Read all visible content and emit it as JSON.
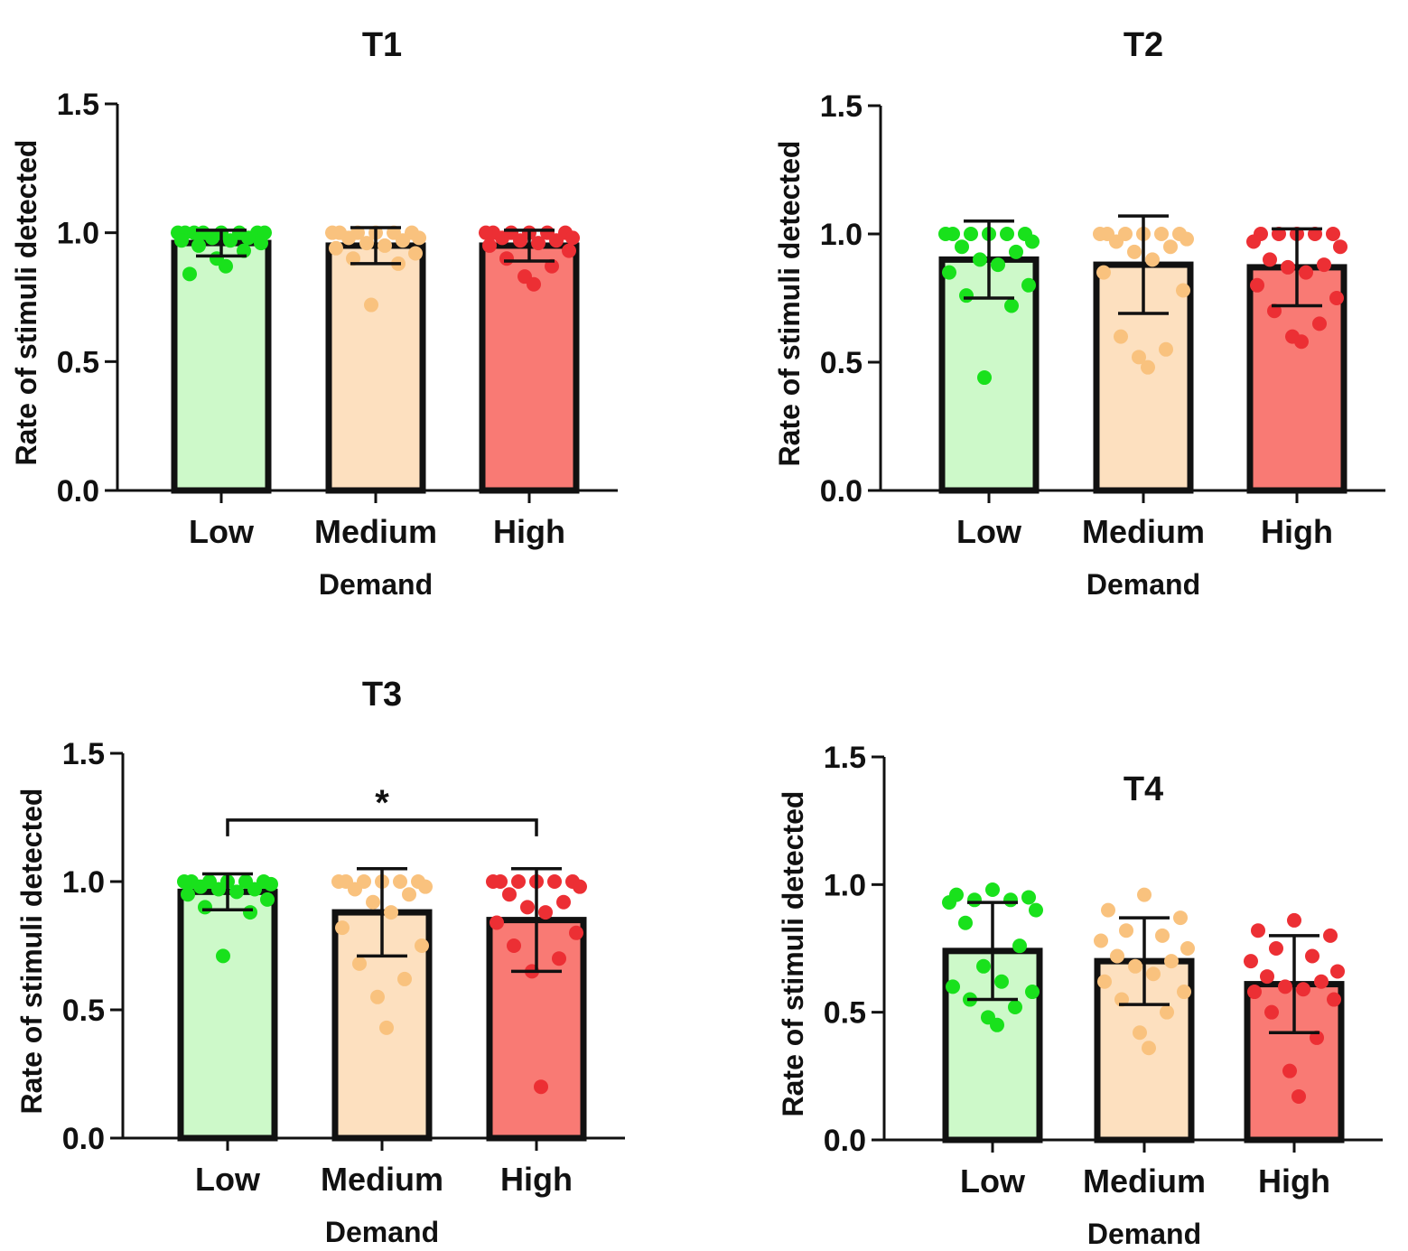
{
  "colors": {
    "low_fill": "#cdf9c9",
    "low_dot": "#19e11c",
    "medium_fill": "#fde0bf",
    "medium_dot": "#f9c27e",
    "high_fill": "#f97a74",
    "high_dot": "#ec2f34",
    "axis": "#111111"
  },
  "chart_data": [
    {
      "type": "bar",
      "title": "T1",
      "title_position": "top",
      "xlabel": "Demand",
      "ylabel": "Rate of stimuli detected",
      "categories": [
        "Low",
        "Medium",
        "High"
      ],
      "ylim": [
        0,
        1.5
      ],
      "yticks": [
        "0.0",
        "0.5",
        "1.0",
        "1.5"
      ],
      "means": [
        0.96,
        0.95,
        0.95
      ],
      "sd": [
        0.05,
        0.07,
        0.06
      ],
      "points": [
        [
          1,
          1,
          1,
          1,
          1,
          1,
          1,
          1,
          0.98,
          0.98,
          0.97,
          0.97,
          0.96,
          0.95,
          0.93,
          0.9,
          0.87,
          0.84
        ],
        [
          1,
          1,
          1,
          1,
          1,
          1,
          0.98,
          0.98,
          0.97,
          0.96,
          0.95,
          0.94,
          0.92,
          0.9,
          0.88,
          0.72
        ],
        [
          1,
          1,
          1,
          1,
          1,
          1,
          0.98,
          0.98,
          0.97,
          0.97,
          0.96,
          0.95,
          0.93,
          0.9,
          0.87,
          0.83,
          0.8
        ]
      ],
      "significance": null
    },
    {
      "type": "bar",
      "title": "T2",
      "title_position": "top",
      "xlabel": "Demand",
      "ylabel": "Rate of stimuli detected",
      "categories": [
        "Low",
        "Medium",
        "High"
      ],
      "ylim": [
        0,
        1.5
      ],
      "yticks": [
        "0.0",
        "0.5",
        "1.0",
        "1.5"
      ],
      "means": [
        0.9,
        0.88,
        0.87
      ],
      "sd": [
        0.15,
        0.19,
        0.15
      ],
      "points": [
        [
          1,
          1,
          1,
          1,
          1,
          1,
          0.97,
          0.95,
          0.93,
          0.9,
          0.88,
          0.85,
          0.8,
          0.76,
          0.72,
          0.44
        ],
        [
          1,
          1,
          1,
          1,
          1,
          1,
          0.98,
          0.97,
          0.95,
          0.93,
          0.9,
          0.85,
          0.78,
          0.6,
          0.55,
          0.52,
          0.48
        ],
        [
          1,
          1,
          1,
          1,
          1,
          0.97,
          0.95,
          0.9,
          0.88,
          0.87,
          0.85,
          0.8,
          0.75,
          0.7,
          0.65,
          0.6,
          0.58
        ]
      ],
      "significance": null
    },
    {
      "type": "bar",
      "title": "T3",
      "title_position": "top",
      "xlabel": "Demand",
      "ylabel": "Rate of stimuli detected",
      "categories": [
        "Low",
        "Medium",
        "High"
      ],
      "ylim": [
        0,
        1.5
      ],
      "yticks": [
        "0.0",
        "0.5",
        "1.0",
        "1.5"
      ],
      "means": [
        0.96,
        0.88,
        0.85
      ],
      "sd": [
        0.07,
        0.17,
        0.2
      ],
      "points": [
        [
          1,
          1,
          1,
          1,
          1,
          1,
          0.99,
          0.98,
          0.97,
          0.97,
          0.96,
          0.95,
          0.93,
          0.9,
          0.88,
          0.71
        ],
        [
          1,
          1,
          1,
          1,
          1,
          1,
          0.98,
          0.97,
          0.95,
          0.92,
          0.88,
          0.82,
          0.75,
          0.68,
          0.62,
          0.55,
          0.43
        ],
        [
          1,
          1,
          1,
          1,
          1,
          1,
          0.98,
          0.95,
          0.92,
          0.9,
          0.88,
          0.84,
          0.8,
          0.75,
          0.7,
          0.65,
          0.2
        ]
      ],
      "significance": {
        "from": "Low",
        "to": "High",
        "label": "*"
      }
    },
    {
      "type": "bar",
      "title": "T4",
      "title_position": "inside-top",
      "xlabel": "Demand",
      "ylabel": "Rate of stimuli detected",
      "categories": [
        "Low",
        "Medium",
        "High"
      ],
      "ylim": [
        0,
        1.5
      ],
      "yticks": [
        "0.0",
        "0.5",
        "1.0",
        "1.5"
      ],
      "means": [
        0.74,
        0.7,
        0.61
      ],
      "sd": [
        0.19,
        0.17,
        0.19
      ],
      "points": [
        [
          0.98,
          0.96,
          0.95,
          0.94,
          0.94,
          0.93,
          0.9,
          0.85,
          0.76,
          0.68,
          0.62,
          0.6,
          0.58,
          0.55,
          0.52,
          0.48,
          0.45
        ],
        [
          0.96,
          0.9,
          0.87,
          0.82,
          0.8,
          0.78,
          0.75,
          0.72,
          0.7,
          0.68,
          0.65,
          0.62,
          0.58,
          0.55,
          0.5,
          0.42,
          0.36
        ],
        [
          0.86,
          0.82,
          0.8,
          0.75,
          0.72,
          0.7,
          0.66,
          0.64,
          0.62,
          0.6,
          0.59,
          0.58,
          0.55,
          0.5,
          0.4,
          0.27,
          0.17
        ]
      ],
      "significance": null
    }
  ]
}
